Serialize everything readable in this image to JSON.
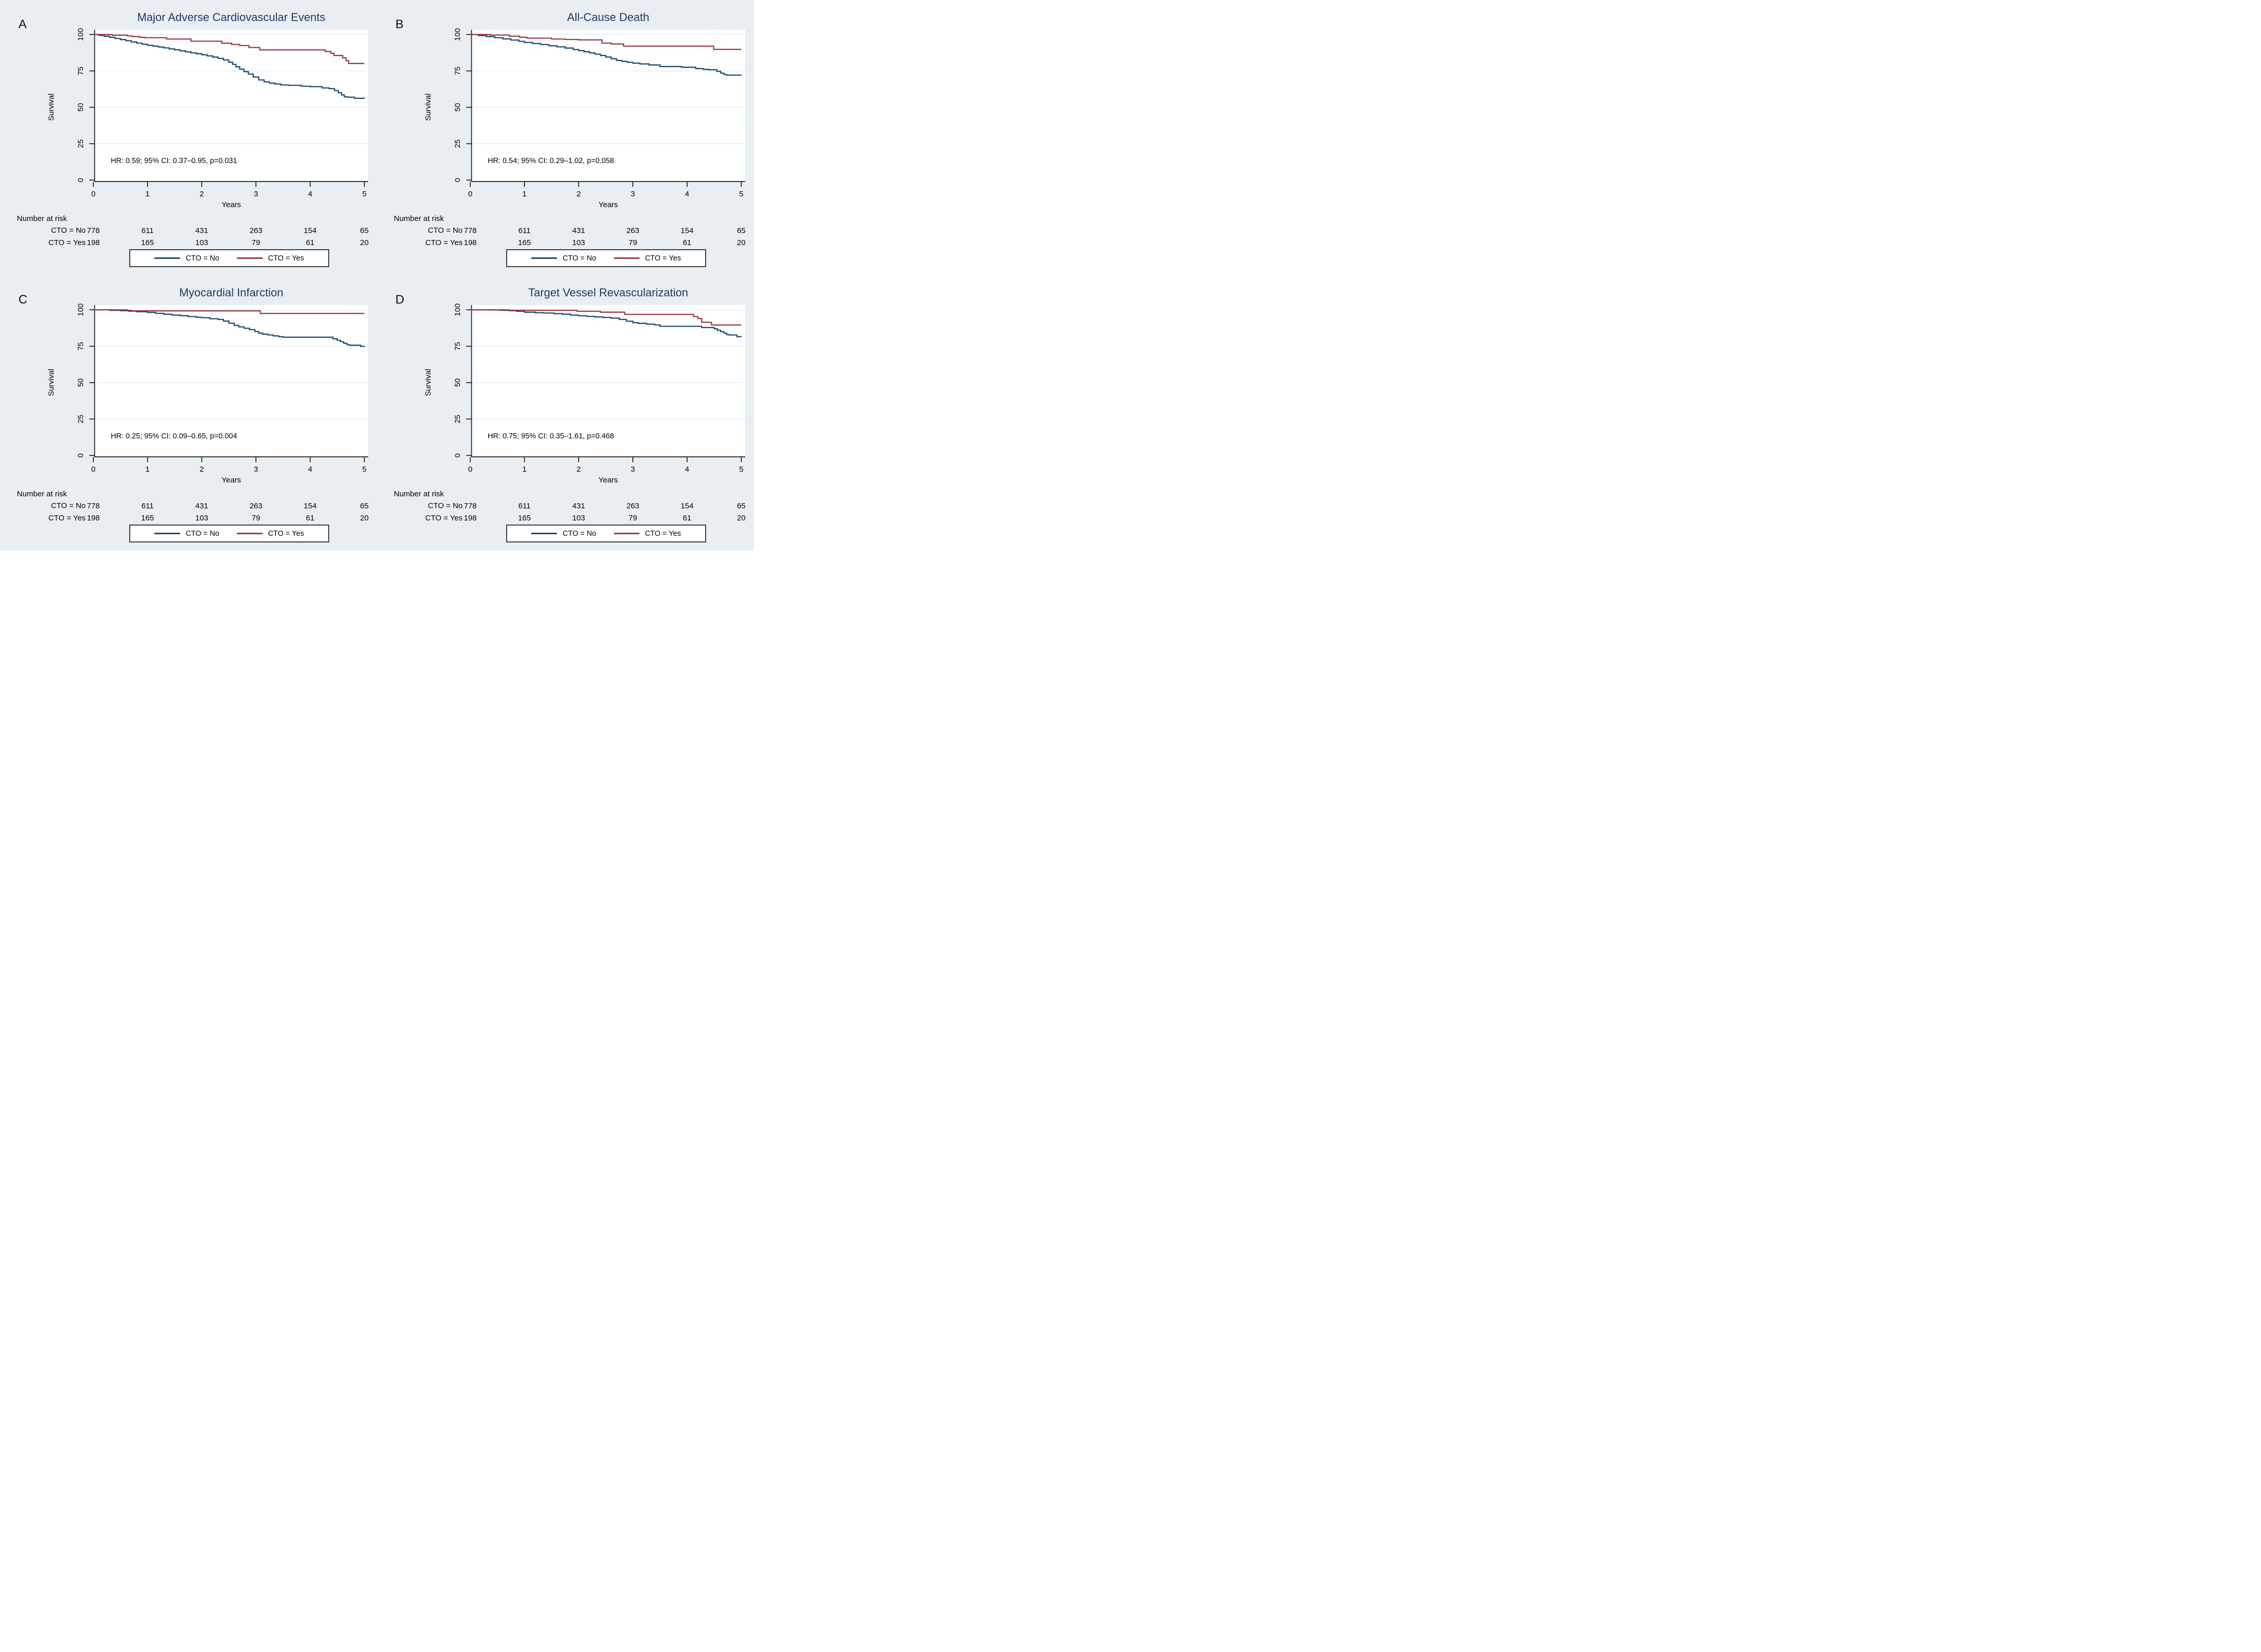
{
  "figure": {
    "background": "#e8eef2",
    "plot_background": "#ffffff",
    "grid_color": "#dde9ef",
    "axis_color": "#1a1a1a",
    "title_color": "#1f3a68"
  },
  "groups": [
    {
      "name": "CTO = No",
      "color": "#1b4a73"
    },
    {
      "name": "CTO = Yes",
      "color": "#9e3a44"
    }
  ],
  "axes": {
    "ylabel": "Survival",
    "xlabel": "Years",
    "yticks": [
      0,
      25,
      50,
      75,
      100
    ],
    "xticks": [
      0,
      1,
      2,
      3,
      4,
      5
    ],
    "ylim": [
      0,
      100
    ],
    "xlim": [
      0,
      5
    ]
  },
  "risk_table": {
    "header": "Number at risk",
    "rows": [
      {
        "label": "CTO = No",
        "values": [
          778,
          611,
          431,
          263,
          154,
          65
        ]
      },
      {
        "label": "CTO = Yes",
        "values": [
          198,
          165,
          103,
          79,
          61,
          20
        ]
      }
    ]
  },
  "chart_data": [
    {
      "panel": "A",
      "type": "line",
      "title": "Major Adverse Cardiovascular Events",
      "hr_text": "HR: 0.59; 95% CI: 0.37–0.95, p=0.031",
      "series": [
        {
          "name": "CTO = No",
          "group": 0,
          "points": [
            [
              0,
              100
            ],
            [
              0.1,
              99.4
            ],
            [
              0.2,
              98.8
            ],
            [
              0.3,
              98.1
            ],
            [
              0.4,
              97.3
            ],
            [
              0.5,
              96.5
            ],
            [
              0.6,
              95.7
            ],
            [
              0.7,
              94.9
            ],
            [
              0.8,
              94.1
            ],
            [
              0.9,
              93.3
            ],
            [
              1.0,
              92.6
            ],
            [
              1.1,
              92.0
            ],
            [
              1.2,
              91.4
            ],
            [
              1.3,
              90.8
            ],
            [
              1.4,
              90.1
            ],
            [
              1.5,
              89.5
            ],
            [
              1.6,
              88.8
            ],
            [
              1.7,
              88.1
            ],
            [
              1.8,
              87.4
            ],
            [
              1.9,
              86.8
            ],
            [
              2.0,
              86.1
            ],
            [
              2.1,
              85.3
            ],
            [
              2.2,
              84.5
            ],
            [
              2.3,
              83.6
            ],
            [
              2.4,
              82.5
            ],
            [
              2.5,
              81.0
            ],
            [
              2.57,
              79.5
            ],
            [
              2.63,
              77.8
            ],
            [
              2.7,
              76.2
            ],
            [
              2.78,
              74.5
            ],
            [
              2.86,
              72.8
            ],
            [
              2.95,
              70.8
            ],
            [
              3.05,
              68.8
            ],
            [
              3.15,
              67.5
            ],
            [
              3.25,
              66.6
            ],
            [
              3.35,
              66.0
            ],
            [
              3.46,
              65.4
            ],
            [
              3.6,
              65.1
            ],
            [
              3.83,
              64.5
            ],
            [
              4.0,
              64.2
            ],
            [
              4.22,
              63.3
            ],
            [
              4.35,
              62.8
            ],
            [
              4.45,
              61.5
            ],
            [
              4.52,
              60.0
            ],
            [
              4.58,
              58.5
            ],
            [
              4.63,
              57.2
            ],
            [
              4.7,
              56.9
            ],
            [
              4.82,
              56.2
            ],
            [
              5,
              55.9
            ]
          ]
        },
        {
          "name": "CTO = Yes",
          "group": 1,
          "points": [
            [
              0,
              100
            ],
            [
              0.35,
              99.5
            ],
            [
              0.63,
              99.0
            ],
            [
              0.72,
              98.6
            ],
            [
              0.85,
              98.1
            ],
            [
              0.95,
              97.8
            ],
            [
              1.35,
              96.9
            ],
            [
              1.8,
              95.4
            ],
            [
              2.37,
              94.0
            ],
            [
              2.55,
              93.2
            ],
            [
              2.7,
              92.4
            ],
            [
              2.87,
              91.1
            ],
            [
              3.07,
              89.4
            ],
            [
              4.28,
              88.3
            ],
            [
              4.38,
              87.1
            ],
            [
              4.44,
              85.6
            ],
            [
              4.6,
              84.0
            ],
            [
              4.66,
              82.0
            ],
            [
              4.71,
              80.1
            ],
            [
              5,
              80.1
            ]
          ]
        }
      ]
    },
    {
      "panel": "B",
      "type": "line",
      "title": "All-Cause Death",
      "hr_text": "HR: 0.54; 95% CI: 0.29–1.02, p=0.058",
      "series": [
        {
          "name": "CTO = No",
          "group": 0,
          "points": [
            [
              0,
              100
            ],
            [
              0.15,
              99.3
            ],
            [
              0.3,
              98.6
            ],
            [
              0.45,
              97.8
            ],
            [
              0.6,
              97.0
            ],
            [
              0.75,
              96.2
            ],
            [
              0.9,
              95.3
            ],
            [
              1.0,
              94.5
            ],
            [
              1.15,
              93.8
            ],
            [
              1.3,
              93.1
            ],
            [
              1.45,
              92.3
            ],
            [
              1.6,
              91.5
            ],
            [
              1.75,
              90.7
            ],
            [
              1.9,
              89.7
            ],
            [
              2.0,
              88.9
            ],
            [
              2.1,
              88.2
            ],
            [
              2.2,
              87.4
            ],
            [
              2.3,
              86.5
            ],
            [
              2.4,
              85.6
            ],
            [
              2.5,
              84.5
            ],
            [
              2.6,
              83.3
            ],
            [
              2.7,
              82.2
            ],
            [
              2.8,
              81.5
            ],
            [
              2.9,
              80.9
            ],
            [
              3.0,
              80.3
            ],
            [
              3.13,
              79.8
            ],
            [
              3.3,
              79.1
            ],
            [
              3.5,
              78.0
            ],
            [
              3.9,
              77.5
            ],
            [
              4.16,
              76.6
            ],
            [
              4.3,
              76.1
            ],
            [
              4.4,
              75.8
            ],
            [
              4.55,
              74.7
            ],
            [
              4.62,
              73.5
            ],
            [
              4.68,
              72.5
            ],
            [
              4.73,
              72.1
            ],
            [
              5,
              72.0
            ]
          ]
        },
        {
          "name": "CTO = Yes",
          "group": 1,
          "points": [
            [
              0,
              100
            ],
            [
              0.37,
              99.6
            ],
            [
              0.72,
              98.8
            ],
            [
              0.91,
              98.1
            ],
            [
              1.05,
              97.5
            ],
            [
              1.5,
              96.9
            ],
            [
              1.75,
              96.6
            ],
            [
              2.0,
              96.3
            ],
            [
              2.43,
              94.1
            ],
            [
              2.6,
              93.5
            ],
            [
              2.83,
              92.0
            ],
            [
              4.49,
              89.8
            ],
            [
              5,
              89.8
            ]
          ]
        }
      ]
    },
    {
      "panel": "C",
      "type": "line",
      "title": "Myocardial Infarction",
      "hr_text": "HR: 0.25; 95% CI: 0.09–0.65, p=0.004",
      "series": [
        {
          "name": "CTO = No",
          "group": 0,
          "points": [
            [
              0,
              100
            ],
            [
              0.3,
              99.7
            ],
            [
              0.5,
              99.4
            ],
            [
              0.65,
              99.1
            ],
            [
              0.8,
              98.7
            ],
            [
              1.0,
              98.2
            ],
            [
              1.15,
              97.6
            ],
            [
              1.3,
              97.0
            ],
            [
              1.45,
              96.4
            ],
            [
              1.6,
              96.0
            ],
            [
              1.75,
              95.4
            ],
            [
              1.9,
              94.9
            ],
            [
              2.0,
              94.6
            ],
            [
              2.15,
              93.9
            ],
            [
              2.3,
              93.4
            ],
            [
              2.4,
              92.3
            ],
            [
              2.5,
              90.8
            ],
            [
              2.6,
              89.3
            ],
            [
              2.68,
              88.3
            ],
            [
              2.78,
              87.4
            ],
            [
              2.88,
              86.4
            ],
            [
              2.98,
              85.1
            ],
            [
              3.05,
              84.0
            ],
            [
              3.12,
              83.3
            ],
            [
              3.22,
              82.7
            ],
            [
              3.32,
              82.1
            ],
            [
              3.42,
              81.6
            ],
            [
              3.5,
              81.2
            ],
            [
              4.42,
              80.1
            ],
            [
              4.5,
              79.0
            ],
            [
              4.56,
              78.1
            ],
            [
              4.62,
              77.0
            ],
            [
              4.68,
              76.0
            ],
            [
              4.73,
              75.7
            ],
            [
              4.93,
              74.9
            ],
            [
              5,
              74.6
            ]
          ]
        },
        {
          "name": "CTO = Yes",
          "group": 1,
          "points": [
            [
              0,
              100
            ],
            [
              0.63,
              99.6
            ],
            [
              0.7,
              99.3
            ],
            [
              3.08,
              97.5
            ],
            [
              5,
              97.5
            ]
          ]
        }
      ]
    },
    {
      "panel": "D",
      "type": "line",
      "title": "Target Vessel Revascularization",
      "hr_text": "HR: 0.75; 95% CI: 0.35–1.61, p=0.468",
      "series": [
        {
          "name": "CTO = No",
          "group": 0,
          "points": [
            [
              0,
              100
            ],
            [
              0.35,
              99.9
            ],
            [
              0.55,
              99.7
            ],
            [
              0.72,
              99.4
            ],
            [
              0.85,
              99.0
            ],
            [
              1.0,
              98.4
            ],
            [
              1.2,
              98.0
            ],
            [
              1.35,
              97.8
            ],
            [
              1.55,
              97.4
            ],
            [
              1.7,
              97.0
            ],
            [
              1.85,
              96.4
            ],
            [
              2.0,
              95.9
            ],
            [
              2.15,
              95.5
            ],
            [
              2.3,
              95.1
            ],
            [
              2.45,
              94.8
            ],
            [
              2.6,
              94.3
            ],
            [
              2.75,
              93.4
            ],
            [
              2.88,
              92.2
            ],
            [
              3.0,
              91.2
            ],
            [
              3.1,
              90.7
            ],
            [
              3.25,
              90.2
            ],
            [
              3.4,
              89.7
            ],
            [
              3.5,
              88.7
            ],
            [
              4.27,
              87.8
            ],
            [
              4.5,
              87.0
            ],
            [
              4.56,
              86.0
            ],
            [
              4.62,
              85.0
            ],
            [
              4.68,
              84.0
            ],
            [
              4.73,
              83.0
            ],
            [
              4.78,
              82.7
            ],
            [
              4.92,
              81.6
            ],
            [
              5,
              81.4
            ]
          ]
        },
        {
          "name": "CTO = Yes",
          "group": 1,
          "points": [
            [
              0,
              100
            ],
            [
              0.72,
              99.7
            ],
            [
              1.97,
              99.0
            ],
            [
              2.4,
              98.4
            ],
            [
              2.85,
              96.9
            ],
            [
              4.12,
              95.4
            ],
            [
              4.2,
              94.0
            ],
            [
              4.27,
              91.4
            ],
            [
              4.45,
              89.6
            ],
            [
              5,
              89.6
            ]
          ]
        }
      ]
    }
  ]
}
